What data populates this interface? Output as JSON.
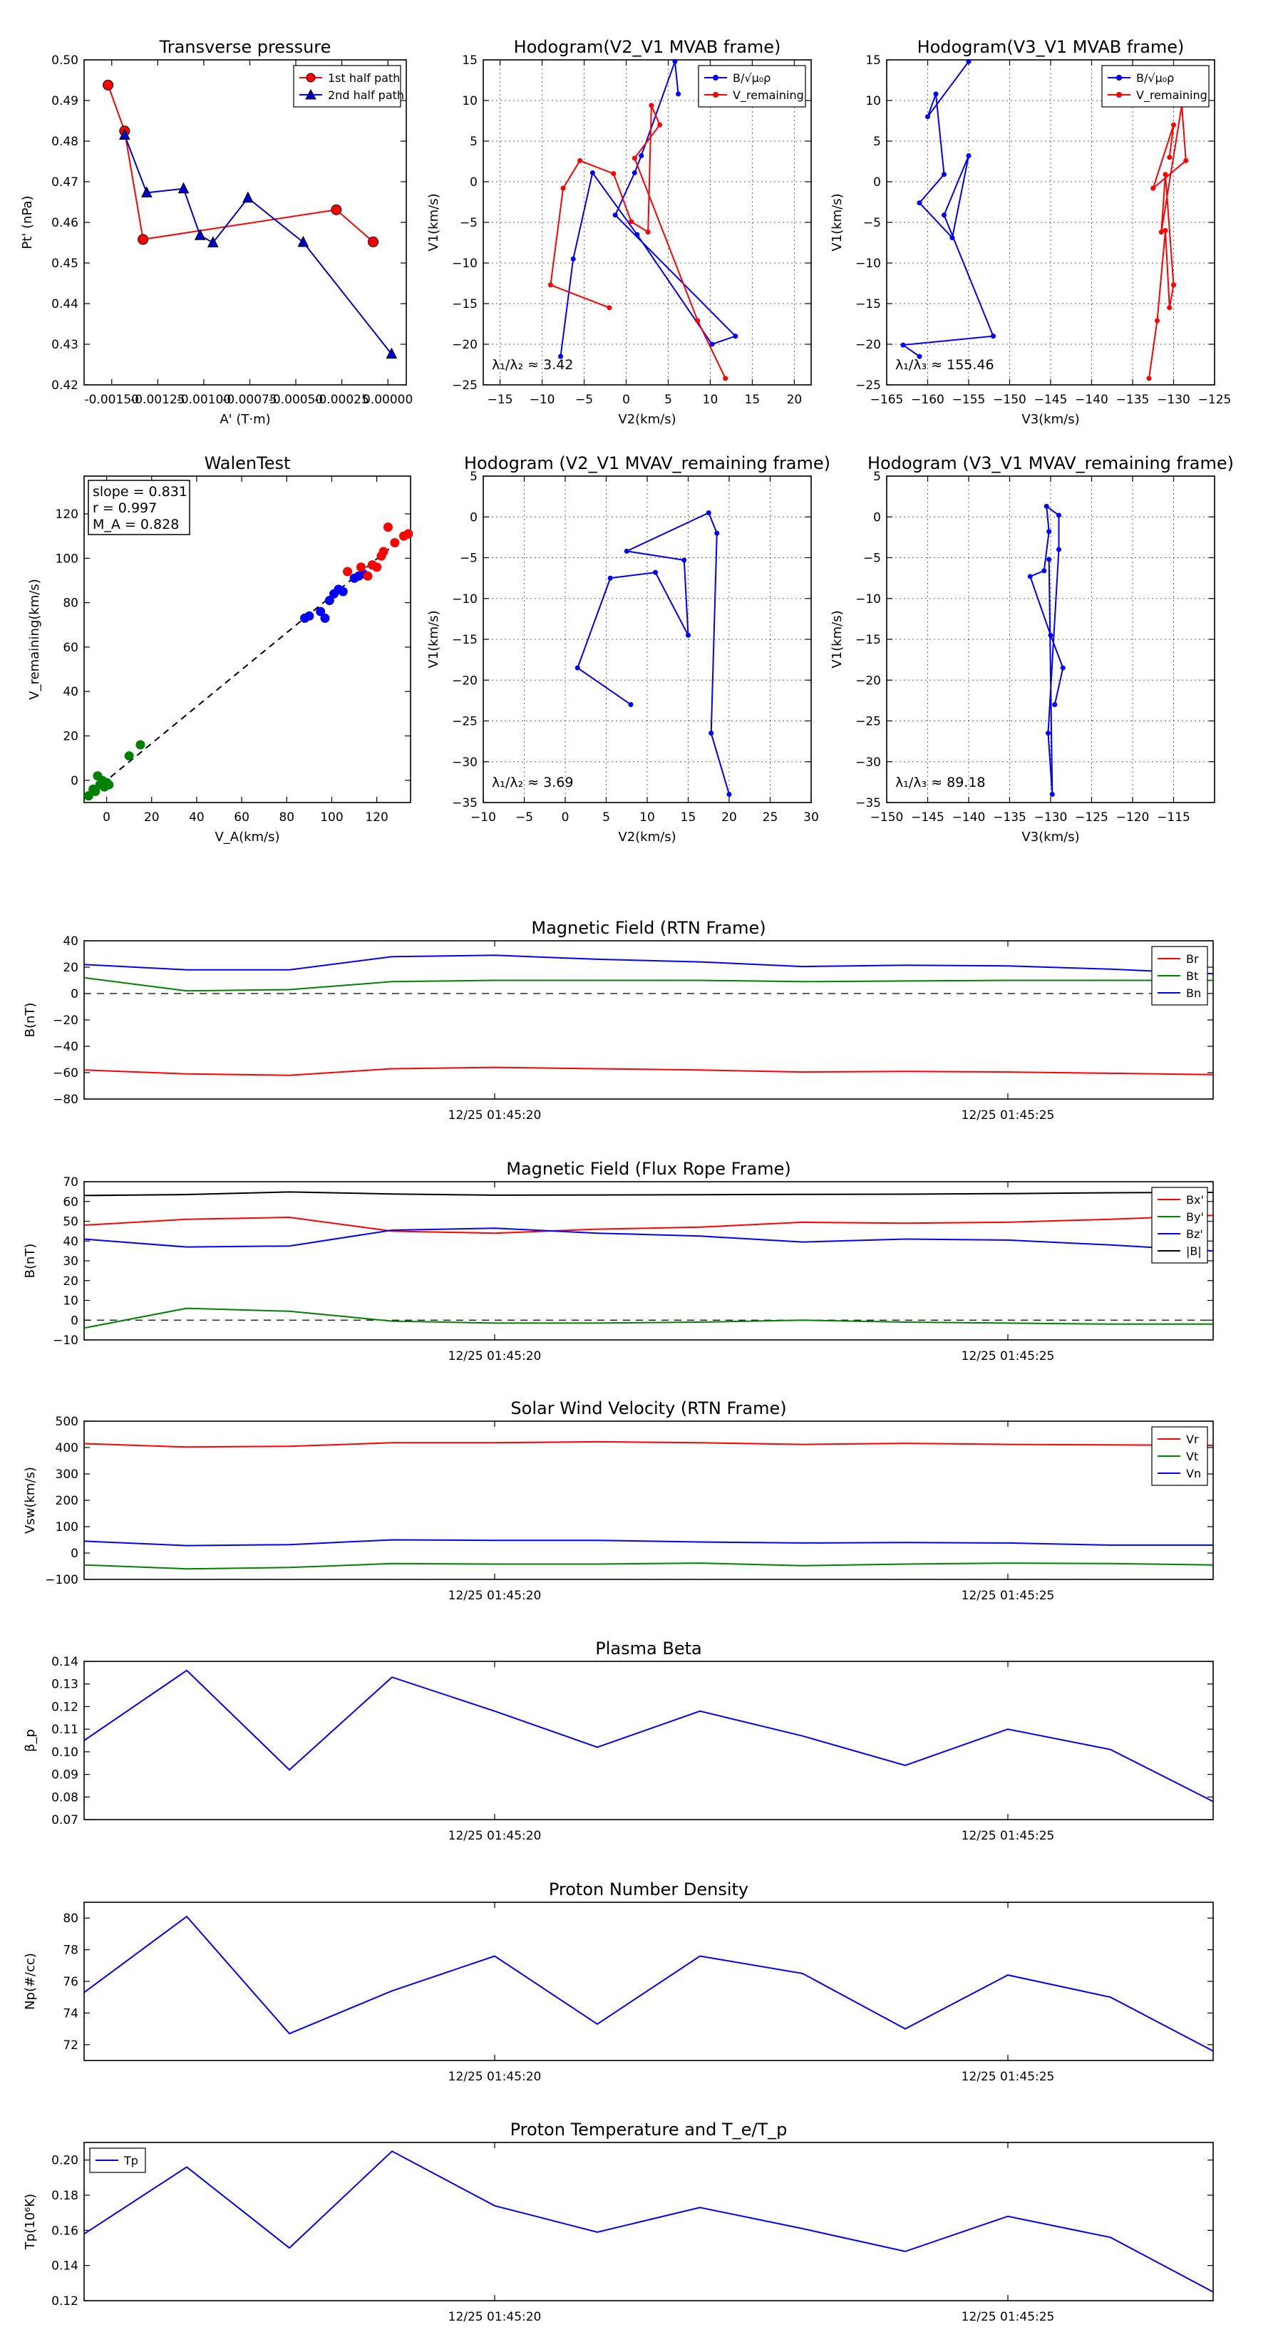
{
  "chart_data": [
    {
      "id": "tp",
      "type": "line",
      "title": "Transverse pressure",
      "xlabel": "A' (T·m)",
      "ylabel": "Pt' (nPa)",
      "xlim": [
        -0.00165,
        0.0001
      ],
      "ylim": [
        0.42,
        0.5
      ],
      "xticks": [
        -0.0015,
        -0.00125,
        -0.001,
        -0.00075,
        -0.0005,
        -0.00025,
        0
      ],
      "xticklabels": [
        "-0.00150",
        "-0.00125",
        "-0.00100",
        "-0.00075",
        "-0.00050",
        "-0.00025",
        "0.00000"
      ],
      "yticks": [
        0.42,
        0.43,
        0.44,
        0.45,
        0.46,
        0.47,
        0.48,
        0.49,
        0.5
      ],
      "yticklabels": [
        "0.42",
        "0.43",
        "0.44",
        "0.45",
        "0.46",
        "0.47",
        "0.48",
        "0.49",
        "0.50"
      ],
      "legend": "top-right",
      "series": [
        {
          "name": "1st half path",
          "color": "#ff0000",
          "marker": "circle",
          "x": [
            -0.00152,
            -0.00143,
            -0.00133,
            -0.00028,
            -8e-05
          ],
          "y": [
            0.4938,
            0.4825,
            0.4558,
            0.4631,
            0.4552
          ]
        },
        {
          "name": "2nd half path",
          "color": "#0000cc",
          "marker": "triangle",
          "x": [
            -0.00143,
            -0.00131,
            -0.00111,
            -0.00102,
            -0.00095,
            -0.00076,
            -0.00046,
            2e-05
          ],
          "y": [
            0.4815,
            0.4673,
            0.4683,
            0.4568,
            0.455,
            0.466,
            0.4551,
            0.4276
          ]
        }
      ]
    },
    {
      "id": "h1",
      "type": "line",
      "title": "Hodogram(V2_V1 MVAB frame)",
      "xlabel": "V2(km/s)",
      "ylabel": "V1(km/s)",
      "xlim": [
        -17,
        22
      ],
      "ylim": [
        -25,
        15
      ],
      "xticks": [
        -15,
        -10,
        -5,
        0,
        5,
        10,
        15,
        20
      ],
      "xticklabels": [
        "−15",
        "−10",
        "−5",
        "0",
        "5",
        "10",
        "15",
        "20"
      ],
      "yticks": [
        -25,
        -20,
        -15,
        -10,
        -5,
        0,
        5,
        10,
        15
      ],
      "yticklabels": [
        "−25",
        "−20",
        "−15",
        "−10",
        "−5",
        "0",
        "5",
        "10",
        "15"
      ],
      "legend": "top-right",
      "grid": true,
      "annotation": "λ₁/λ₂ ≈ 3.42",
      "series": [
        {
          "name": "B/√μ₀ρ",
          "color": "#0000ff",
          "x": [
            -7.8,
            -6.3,
            -4.0,
            1.3,
            10.2,
            13.0,
            -1.3,
            1.0,
            1.8,
            5.8,
            6.2
          ],
          "y": [
            -21.5,
            -9.5,
            1.1,
            -6.5,
            -20.0,
            -19.0,
            -4.1,
            1.1,
            3.2,
            14.8,
            10.8
          ]
        },
        {
          "name": "V_remaining",
          "color": "#ff0000",
          "x": [
            -2.0,
            -9.0,
            -7.5,
            -5.5,
            -1.5,
            0.6,
            2.6,
            3.0,
            4.0,
            1.0,
            8.5,
            11.8
          ],
          "y": [
            -15.5,
            -12.7,
            -0.8,
            2.6,
            1.0,
            -4.9,
            -6.2,
            9.4,
            7.0,
            2.9,
            -17.1,
            -24.2
          ]
        }
      ]
    },
    {
      "id": "h2",
      "type": "line",
      "title": "Hodogram(V3_V1 MVAB frame)",
      "xlabel": "V3(km/s)",
      "ylabel": "V1(km/s)",
      "xlim": [
        -165,
        -125
      ],
      "ylim": [
        -25,
        15
      ],
      "xticks": [
        -165,
        -160,
        -155,
        -150,
        -145,
        -140,
        -135,
        -130,
        -125
      ],
      "xticklabels": [
        "−165",
        "−160",
        "−155",
        "−150",
        "−145",
        "−140",
        "−135",
        "−130",
        "−125"
      ],
      "yticks": [
        -25,
        -20,
        -15,
        -10,
        -5,
        0,
        5,
        10,
        15
      ],
      "yticklabels": [
        "−25",
        "−20",
        "−15",
        "−10",
        "−5",
        "0",
        "5",
        "10",
        "15"
      ],
      "legend": "top-right",
      "grid": true,
      "annotation": "λ₁/λ₃ ≈ 155.46",
      "series": [
        {
          "name": "B/√μ₀ρ",
          "color": "#0000ff",
          "x": [
            -161.0,
            -163.0,
            -152.0,
            -158.0,
            -155.0,
            -157.0,
            -161.0,
            -158.0,
            -159.0,
            -160.0,
            -155.0
          ],
          "y": [
            -21.5,
            -20.1,
            -19.0,
            -4.1,
            3.2,
            -6.9,
            -2.6,
            0.9,
            10.8,
            8.0,
            14.8
          ]
        },
        {
          "name": "V_remaining",
          "color": "#ff0000",
          "x": [
            -133.0,
            -132.0,
            -131.0,
            -130.5,
            -130.0,
            -131.0,
            -131.5,
            -129.0,
            -128.5,
            -132.5,
            -130.0,
            -130.5
          ],
          "y": [
            -24.2,
            -17.1,
            -6.0,
            -15.5,
            -12.7,
            0.9,
            -6.2,
            9.4,
            2.6,
            -0.8,
            7.0,
            3.0
          ]
        }
      ]
    },
    {
      "id": "walen",
      "type": "scatter",
      "title": "WalenTest",
      "xlabel": "V_A(km/s)",
      "ylabel": "V_remaining(km/s)",
      "xlim": [
        -10,
        135
      ],
      "ylim": [
        -10,
        137
      ],
      "xticks": [
        0,
        20,
        40,
        60,
        80,
        100,
        120
      ],
      "xticklabels": [
        "0",
        "20",
        "40",
        "60",
        "80",
        "100",
        "120"
      ],
      "yticks": [
        0,
        20,
        40,
        60,
        80,
        100,
        120
      ],
      "yticklabels": [
        "0",
        "20",
        "40",
        "60",
        "80",
        "100",
        "120"
      ],
      "textbox": [
        "slope = 0.831",
        "r = 0.997",
        "M_A = 0.828"
      ],
      "fit_line": {
        "x": [
          -10,
          135
        ],
        "slope": 0.831
      },
      "series": [
        {
          "name": "green",
          "color": "#008000",
          "x": [
            -8,
            -5,
            -3,
            -2,
            -1,
            0,
            1,
            -4,
            -6,
            10,
            15
          ],
          "y": [
            -7,
            -5,
            -2,
            0,
            -3,
            -1,
            -2,
            2,
            -4,
            11,
            16
          ]
        },
        {
          "name": "blue",
          "color": "#0000ff",
          "x": [
            88,
            90,
            95,
            97,
            99,
            101,
            103,
            105,
            110,
            112,
            114
          ],
          "y": [
            73,
            74,
            76,
            73,
            81,
            84,
            86,
            85,
            91,
            92,
            93
          ]
        },
        {
          "name": "red",
          "color": "#ff0000",
          "x": [
            107,
            113,
            116,
            118,
            120,
            122,
            123,
            125,
            128,
            132,
            134
          ],
          "y": [
            94,
            96,
            92,
            97,
            96,
            101,
            103,
            114,
            107,
            110,
            111
          ]
        }
      ]
    },
    {
      "id": "h3",
      "type": "line",
      "title": "Hodogram (V2_V1 MVAV_remaining frame)",
      "xlabel": "V2(km/s)",
      "ylabel": "V1(km/s)",
      "xlim": [
        -10,
        30
      ],
      "ylim": [
        -35,
        5
      ],
      "xticks": [
        -10,
        -5,
        0,
        5,
        10,
        15,
        20,
        25,
        30
      ],
      "xticklabels": [
        "−10",
        "−5",
        "0",
        "5",
        "10",
        "15",
        "20",
        "25",
        "30"
      ],
      "yticks": [
        -35,
        -30,
        -25,
        -20,
        -15,
        -10,
        -5,
        0,
        5
      ],
      "yticklabels": [
        "−35",
        "−30",
        "−25",
        "−20",
        "−15",
        "−10",
        "−5",
        "0",
        "5"
      ],
      "grid": true,
      "annotation": "λ₁/λ₂ ≈ 3.69",
      "series": [
        {
          "name": "hodogram",
          "color": "#0000ff",
          "x": [
            8,
            1.5,
            5.5,
            11,
            15,
            14.5,
            7.5,
            17.5,
            18.5,
            17.8,
            20
          ],
          "y": [
            -23,
            -18.5,
            -7.5,
            -6.8,
            -14.5,
            -5.3,
            -4.2,
            0.5,
            -2,
            -26.5,
            -34
          ]
        }
      ]
    },
    {
      "id": "h4",
      "type": "line",
      "title": "Hodogram (V3_V1 MVAV_remaining frame)",
      "xlabel": "V3(km/s)",
      "ylabel": "V1(km/s)",
      "xlim": [
        -150,
        -110
      ],
      "ylim": [
        -35,
        5
      ],
      "xticks": [
        -150,
        -145,
        -140,
        -135,
        -130,
        -125,
        -120,
        -115
      ],
      "xticklabels": [
        "−150",
        "−145",
        "−140",
        "−135",
        "−130",
        "−125",
        "−120",
        "−115"
      ],
      "yticks": [
        -35,
        -30,
        -25,
        -20,
        -15,
        -10,
        -5,
        0,
        5
      ],
      "yticklabels": [
        "−35",
        "−30",
        "−25",
        "−20",
        "−15",
        "−10",
        "−5",
        "0",
        "5"
      ],
      "grid": true,
      "annotation": "λ₁/λ₃ ≈ 89.18",
      "series": [
        {
          "name": "hodogram",
          "color": "#0000ff",
          "x": [
            -129.5,
            -128.5,
            -130.0,
            -132.5,
            -130.8,
            -130.2,
            -130.5,
            -129.0,
            -129.0,
            -130.3,
            -129.8,
            -130.2
          ],
          "y": [
            -23,
            -18.5,
            -14.5,
            -7.3,
            -6.6,
            -1.8,
            1.3,
            0.2,
            -4.0,
            -26.5,
            -34,
            -5.2
          ]
        }
      ]
    },
    {
      "id": "mag_rtn",
      "type": "line",
      "title": "Magnetic Field (RTN Frame)",
      "ylabel": "B(nT)",
      "ylim": [
        -80,
        40
      ],
      "yticks": [
        -80,
        -60,
        -40,
        -20,
        0,
        20,
        40
      ],
      "yticklabels": [
        "−80",
        "−60",
        "−40",
        "−20",
        "0",
        "20",
        "40"
      ],
      "xticks_index": [
        4,
        9
      ],
      "xticklabels": [
        "12/25 01:45:20",
        "12/25 01:45:25"
      ],
      "legend": "top-right",
      "zero_line": true,
      "series": [
        {
          "name": "Br",
          "color": "#ff0000",
          "values": [
            -58,
            -61,
            -62,
            -57,
            -56,
            -57,
            -58,
            -59.5,
            -59,
            -59.5,
            -60.5,
            -61.5
          ]
        },
        {
          "name": "Bt",
          "color": "#008000",
          "values": [
            12,
            2,
            3,
            9,
            10,
            10,
            10,
            9,
            9.5,
            10,
            10,
            10
          ]
        },
        {
          "name": "Bn",
          "color": "#0000ff",
          "values": [
            22,
            18,
            18,
            28,
            29,
            26,
            24,
            20.5,
            21.5,
            21,
            18.5,
            15
          ]
        }
      ]
    },
    {
      "id": "mag_fr",
      "type": "line",
      "title": "Magnetic Field (Flux Rope Frame)",
      "ylabel": "B(nT)",
      "ylim": [
        -10,
        70
      ],
      "yticks": [
        -10,
        0,
        10,
        20,
        30,
        40,
        50,
        60,
        70
      ],
      "yticklabels": [
        "−10",
        "0",
        "10",
        "20",
        "30",
        "40",
        "50",
        "60",
        "70"
      ],
      "xticks_index": [
        4,
        9
      ],
      "xticklabels": [
        "12/25 01:45:20",
        "12/25 01:45:25"
      ],
      "legend": "top-right",
      "zero_line": true,
      "series": [
        {
          "name": "Bx'",
          "color": "#ff0000",
          "values": [
            48,
            51,
            52,
            45,
            44,
            46,
            47,
            49.5,
            49,
            49.5,
            51,
            53
          ]
        },
        {
          "name": "By'",
          "color": "#008000",
          "values": [
            -4,
            6,
            4.5,
            -0.5,
            -1.5,
            -1.5,
            -1,
            0,
            -1,
            -1.5,
            -2,
            -2
          ]
        },
        {
          "name": "Bz'",
          "color": "#0000ff",
          "values": [
            41,
            37,
            37.5,
            45.5,
            46.5,
            44,
            42.5,
            39.5,
            41,
            40.5,
            38,
            35
          ]
        },
        {
          "name": "|B|",
          "color": "#000000",
          "values": [
            63,
            63.5,
            64.8,
            63.8,
            63.2,
            63.3,
            63.4,
            63.6,
            63.7,
            64,
            64.4,
            64.6
          ]
        }
      ]
    },
    {
      "id": "vel",
      "type": "line",
      "title": "Solar Wind Velocity (RTN Frame)",
      "ylabel": "Vsw(km/s)",
      "ylim": [
        -100,
        500
      ],
      "yticks": [
        -100,
        0,
        100,
        200,
        300,
        400,
        500
      ],
      "yticklabels": [
        "−100",
        "0",
        "100",
        "200",
        "300",
        "400",
        "500"
      ],
      "xticks_index": [
        4,
        9
      ],
      "xticklabels": [
        "12/25 01:45:20",
        "12/25 01:45:25"
      ],
      "legend": "top-right",
      "series": [
        {
          "name": "Vr",
          "color": "#ff0000",
          "values": [
            415,
            402,
            405,
            418,
            418,
            422,
            418,
            412,
            416,
            412,
            410,
            408
          ]
        },
        {
          "name": "Vt",
          "color": "#008000",
          "values": [
            -45,
            -60,
            -55,
            -40,
            -42,
            -42,
            -38,
            -48,
            -42,
            -38,
            -40,
            -45
          ]
        },
        {
          "name": "Vn",
          "color": "#0000ff",
          "values": [
            45,
            28,
            32,
            50,
            48,
            48,
            42,
            38,
            40,
            38,
            30,
            30
          ]
        }
      ]
    },
    {
      "id": "beta",
      "type": "line",
      "title": "Plasma Beta",
      "ylabel": "β_p",
      "ylim": [
        0.07,
        0.14
      ],
      "yticks": [
        0.07,
        0.08,
        0.09,
        0.1,
        0.11,
        0.12,
        0.13,
        0.14
      ],
      "yticklabels": [
        "0.07",
        "0.08",
        "0.09",
        "0.10",
        "0.11",
        "0.12",
        "0.13",
        "0.14"
      ],
      "xticks_index": [
        4,
        9
      ],
      "xticklabels": [
        "12/25 01:45:20",
        "12/25 01:45:25"
      ],
      "series": [
        {
          "name": "beta",
          "color": "#0000ff",
          "values": [
            0.105,
            0.136,
            0.092,
            0.133,
            0.118,
            0.102,
            0.118,
            0.107,
            0.094,
            0.11,
            0.101,
            0.078
          ]
        }
      ]
    },
    {
      "id": "np",
      "type": "line",
      "title": "Proton Number Density",
      "ylabel": "Np(#/cc)",
      "ylim": [
        71,
        81
      ],
      "yticks": [
        72,
        74,
        76,
        78,
        80
      ],
      "yticklabels": [
        "72",
        "74",
        "76",
        "78",
        "80"
      ],
      "xticks_index": [
        4,
        9
      ],
      "xticklabels": [
        "12/25 01:45:20",
        "12/25 01:45:25"
      ],
      "series": [
        {
          "name": "Np",
          "color": "#0000ff",
          "values": [
            75.3,
            80.1,
            72.7,
            75.4,
            77.6,
            73.3,
            77.6,
            76.5,
            73.0,
            76.4,
            75.0,
            71.6
          ]
        }
      ]
    },
    {
      "id": "tp_temp",
      "type": "line",
      "title": "Proton Temperature and T_e/T_p",
      "ylabel": "Tp(10⁶K)",
      "ylim": [
        0.12,
        0.21
      ],
      "yticks": [
        0.12,
        0.14,
        0.16,
        0.18,
        0.2
      ],
      "yticklabels": [
        "0.12",
        "0.14",
        "0.16",
        "0.18",
        "0.20"
      ],
      "xticks_index": [
        4,
        9
      ],
      "xticklabels": [
        "12/25 01:45:20",
        "12/25 01:45:25"
      ],
      "legend": "top-left",
      "series": [
        {
          "name": "Tp",
          "color": "#0000ff",
          "values": [
            0.158,
            0.196,
            0.15,
            0.205,
            0.174,
            0.159,
            0.173,
            0.161,
            0.148,
            0.168,
            0.156,
            0.125
          ]
        }
      ]
    }
  ]
}
